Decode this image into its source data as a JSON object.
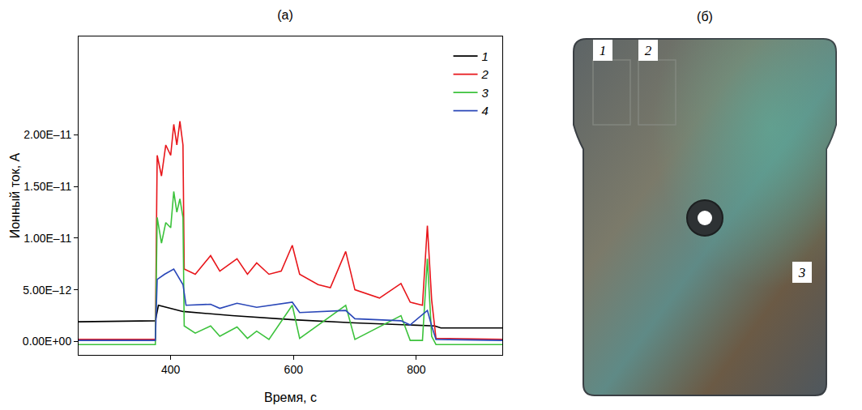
{
  "chart_data": {
    "type": "line",
    "title": "(а)",
    "x_label": "Время, с",
    "y_label": "Ионный ток, А",
    "xlim": [
      250,
      940
    ],
    "xticks": [
      400,
      600,
      800
    ],
    "ylim": [
      -1.3e-12,
      2.95e-11
    ],
    "yticks": [
      {
        "value": 0,
        "label": "0.00E+00"
      },
      {
        "value": 5e-12,
        "label": "5.00E–12"
      },
      {
        "value": 1e-11,
        "label": "1.00E–11"
      },
      {
        "value": 1.5e-11,
        "label": "1.50E–11"
      },
      {
        "value": 2e-11,
        "label": "2.00E–11"
      }
    ],
    "grid": false,
    "legend": "top-right",
    "series": [
      {
        "name": "1",
        "color": "#000000",
        "x": [
          250,
          375,
          380,
          400,
          420,
          500,
          600,
          700,
          800,
          830,
          840,
          940
        ],
        "values": [
          1.9e-12,
          2e-12,
          3.5e-12,
          3.2e-12,
          2.9e-12,
          2.5e-12,
          2.1e-12,
          1.8e-12,
          1.6e-12,
          1.5e-12,
          1.3e-12,
          1.3e-12
        ]
      },
      {
        "name": "2",
        "color": "#e8161b",
        "x": [
          250,
          375,
          378,
          385,
          392,
          400,
          405,
          410,
          415,
          420,
          422,
          440,
          465,
          480,
          508,
          525,
          540,
          560,
          580,
          598,
          610,
          640,
          660,
          685,
          700,
          740,
          775,
          790,
          810,
          818,
          825,
          832,
          940
        ],
        "values": [
          2e-13,
          2e-13,
          1.8e-11,
          1.6e-11,
          1.9e-11,
          1.8e-11,
          2.1e-11,
          1.9e-11,
          2.13e-11,
          1.9e-11,
          7e-12,
          6.5e-12,
          8.3e-12,
          6.8e-12,
          8e-12,
          6.5e-12,
          7.6e-12,
          6.5e-12,
          6.8e-12,
          9.3e-12,
          6.5e-12,
          5.5e-12,
          5.2e-12,
          8.7e-12,
          5e-12,
          4.2e-12,
          5.6e-12,
          3.8e-12,
          3.5e-12,
          1.12e-11,
          4e-12,
          3e-13,
          2e-13
        ]
      },
      {
        "name": "3",
        "color": "#3cc23c",
        "x": [
          250,
          375,
          378,
          385,
          392,
          400,
          405,
          410,
          415,
          420,
          422,
          440,
          465,
          480,
          508,
          525,
          540,
          560,
          598,
          610,
          685,
          700,
          775,
          790,
          810,
          818,
          825,
          832,
          940
        ],
        "values": [
          -3e-13,
          -3e-13,
          1.2e-11,
          9.5e-12,
          1.15e-11,
          1.1e-11,
          1.45e-11,
          1.25e-11,
          1.38e-11,
          1.2e-11,
          1.5e-12,
          8e-13,
          1.5e-12,
          5e-13,
          1.4e-12,
          3e-13,
          1e-12,
          2e-13,
          3.5e-12,
          3e-13,
          3.5e-12,
          2e-13,
          2.5e-12,
          1e-13,
          1e-13,
          8e-12,
          5e-13,
          -3e-13,
          -3e-13
        ]
      },
      {
        "name": "4",
        "color": "#2a47b8",
        "x": [
          250,
          375,
          378,
          390,
          405,
          420,
          425,
          465,
          480,
          508,
          540,
          598,
          610,
          685,
          700,
          775,
          790,
          818,
          825,
          832,
          940
        ],
        "values": [
          1e-13,
          1e-13,
          6e-12,
          6.5e-12,
          7e-12,
          5.5e-12,
          3.5e-12,
          3.6e-12,
          3.2e-12,
          3.7e-12,
          3.3e-12,
          3.8e-12,
          2.8e-12,
          3e-12,
          2.2e-12,
          2e-12,
          1.6e-12,
          3e-12,
          1.5e-12,
          2e-13,
          1e-13
        ]
      }
    ]
  },
  "photo": {
    "title": "(б)",
    "labels": [
      "1",
      "2",
      "3"
    ]
  }
}
